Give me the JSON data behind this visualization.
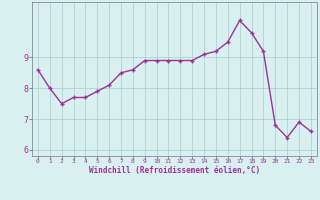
{
  "x": [
    0,
    1,
    2,
    3,
    4,
    5,
    6,
    7,
    8,
    9,
    10,
    11,
    12,
    13,
    14,
    15,
    16,
    17,
    18,
    19,
    20,
    21,
    22,
    23
  ],
  "y": [
    8.6,
    8.0,
    7.5,
    7.7,
    7.7,
    7.9,
    8.1,
    8.5,
    8.6,
    8.9,
    8.9,
    8.9,
    8.9,
    8.9,
    9.1,
    9.2,
    9.5,
    10.2,
    9.8,
    9.2,
    6.8,
    6.4,
    6.9,
    6.6
  ],
  "line_color": "#993399",
  "marker": "+",
  "marker_color": "#993399",
  "bg_color": "#d8f0f0",
  "grid_color": "#aacccc",
  "xlabel": "Windchill (Refroidissement éolien,°C)",
  "xlabel_color": "#993399",
  "ylim": [
    5.8,
    10.8
  ],
  "xlim": [
    -0.5,
    23.5
  ],
  "yticks": [
    6,
    7,
    8,
    9
  ],
  "xticks": [
    0,
    1,
    2,
    3,
    4,
    5,
    6,
    7,
    8,
    9,
    10,
    11,
    12,
    13,
    14,
    15,
    16,
    17,
    18,
    19,
    20,
    21,
    22,
    23
  ],
  "tick_color": "#993399",
  "axis_color": "#888899",
  "grid_linewidth": 0.5,
  "line_linewidth": 1.0,
  "marker_size": 3
}
